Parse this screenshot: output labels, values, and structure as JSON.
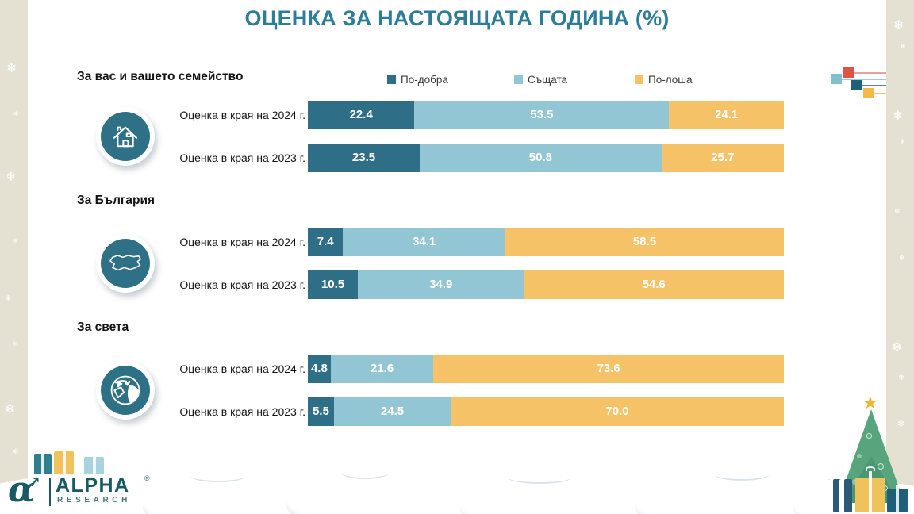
{
  "title": "ОЦЕНКА ЗА НАСТОЯЩАТА ГОДИНА (%)",
  "legend": [
    {
      "label": "По-добра",
      "color": "#2E6F87"
    },
    {
      "label": "Същата",
      "color": "#93C6D4"
    },
    {
      "label": "По-лоша",
      "color": "#F6C267"
    }
  ],
  "chart_data": {
    "type": "bar",
    "orientation": "horizontal-stacked",
    "xlim": [
      0,
      100
    ],
    "series_names": [
      "По-добра",
      "Същата",
      "По-лоша"
    ],
    "series_colors": [
      "#2E6F87",
      "#93C6D4",
      "#F6C267"
    ],
    "groups": [
      {
        "section": "За вас и вашето семейство",
        "icon": "house-icon",
        "rows": [
          {
            "label": "Оценка в края на 2024 г.",
            "values": [
              "22.4",
              "53.5",
              "24.1"
            ]
          },
          {
            "label": "Оценка в края на 2023 г.",
            "values": [
              "23.5",
              "50.8",
              "25.7"
            ]
          }
        ]
      },
      {
        "section": "За България",
        "icon": "bulgaria-map-icon",
        "rows": [
          {
            "label": "Оценка в края на 2024 г.",
            "values": [
              "7.4",
              "34.1",
              "58.5"
            ]
          },
          {
            "label": "Оценка в края на 2023 г.",
            "values": [
              "10.5",
              "34.9",
              "54.6"
            ]
          }
        ]
      },
      {
        "section": "За света",
        "icon": "globe-icon",
        "rows": [
          {
            "label": "Оценка в края на 2024 г.",
            "values": [
              "4.8",
              "21.6",
              "73.6"
            ]
          },
          {
            "label": "Оценка в края на 2023 г.",
            "values": [
              "5.5",
              "24.5",
              "70.0"
            ]
          }
        ]
      }
    ]
  },
  "logo": {
    "glyph": "α",
    "arrow": "↗",
    "brand": "ALPHA",
    "reg": "®",
    "sub": "RESEARCH"
  },
  "decor": {
    "background_strip_color": "#E4E1D2",
    "mini_chart_colors": [
      "#DD5344",
      "#83BFCD",
      "#1F5F78",
      "#F3BA4A"
    ],
    "tree_greens": [
      "#57A47D",
      "#3F8E68"
    ],
    "star_gold": "#F2B52E",
    "gift_colors": [
      "#2F808E",
      "#EFC25C",
      "#A9D3DC",
      "#2A5A78"
    ],
    "snowflake": "❄"
  }
}
